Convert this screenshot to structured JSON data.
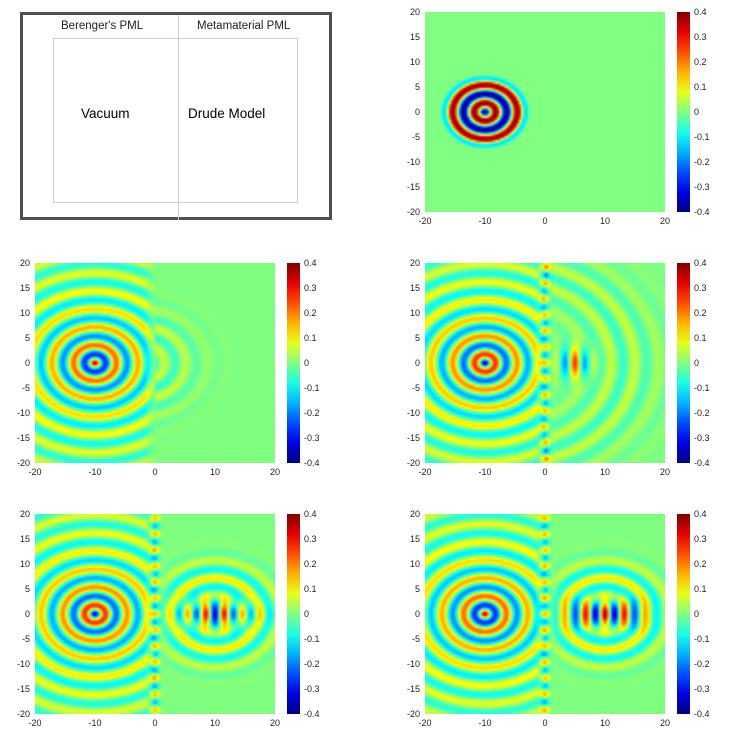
{
  "diagram": {
    "left_region_title": "Berenger's PML",
    "right_region_title": "Metamaterial PML",
    "left_region_label": "Vacuum",
    "right_region_label": "Drude Model"
  },
  "colors": {
    "colormap": "jet",
    "background_field": "#8cfc64",
    "diagram_border": "#505050",
    "region_outline": "#cfcfcf"
  },
  "panels": [
    {
      "name": "field-snapshot-1",
      "polarity": "negative",
      "source": [
        -10,
        0
      ],
      "shell_radius": 7.5,
      "left_waves": false,
      "interface": false,
      "right_field": "none"
    },
    {
      "name": "field-snapshot-2",
      "polarity": "positive",
      "source": [
        -10,
        0
      ],
      "shell_radius": 40,
      "left_waves": true,
      "interface": true,
      "right_field": "faint-arcs"
    },
    {
      "name": "field-snapshot-3",
      "polarity": "negative",
      "source": [
        -10,
        0
      ],
      "shell_radius": 40,
      "left_waves": true,
      "interface": true,
      "right_field": "focus-forming"
    },
    {
      "name": "field-snapshot-4",
      "polarity": "negative",
      "source": [
        -10,
        0
      ],
      "shell_radius": 40,
      "left_waves": true,
      "interface": true,
      "right_field": "focused-image"
    },
    {
      "name": "field-snapshot-5",
      "polarity": "positive",
      "source": [
        -10,
        0
      ],
      "shell_radius": 40,
      "left_waves": true,
      "interface": true,
      "right_field": "focused-image"
    }
  ],
  "axes": {
    "xlim": [
      -20,
      20
    ],
    "ylim": [
      -20,
      20
    ],
    "x_ticks": [
      "-20",
      "-10",
      "0",
      "10",
      "20"
    ],
    "y_ticks": [
      "20",
      "15",
      "10",
      "5",
      "0",
      "-5",
      "-10",
      "-15",
      "-20"
    ]
  },
  "colorbar": {
    "range": [
      -0.4,
      0.4
    ],
    "ticks": [
      "0.4",
      "0.3",
      "0.2",
      "0.1",
      "0",
      "-0.1",
      "-0.2",
      "-0.3",
      "-0.4"
    ]
  }
}
